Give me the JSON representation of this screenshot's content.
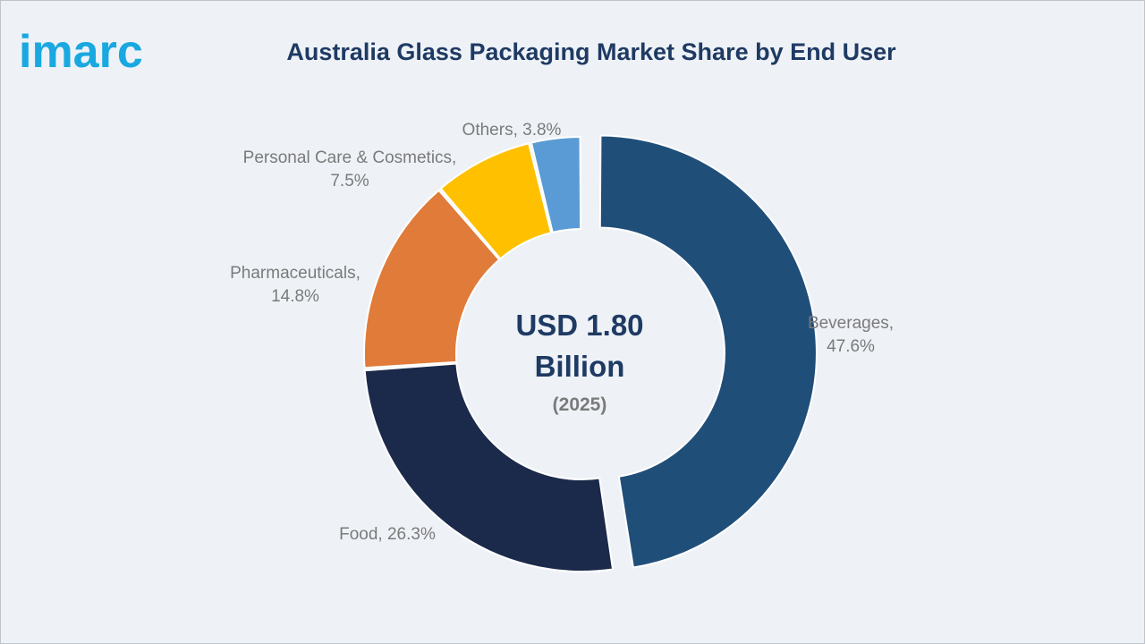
{
  "logo": {
    "text": "imarc",
    "color": "#1aa8e0"
  },
  "chart_data": {
    "type": "pie",
    "variant": "donut",
    "title": "Australia Glass Packaging Market Share by End User",
    "center": {
      "value": "USD 1.80",
      "unit": "Billion",
      "year": "(2025)"
    },
    "series": [
      {
        "name": "Beverages",
        "value": 47.6,
        "color": "#1f4e79",
        "label_lines": [
          "Beverages,",
          "47.6%"
        ],
        "exploded": true
      },
      {
        "name": "Food",
        "value": 26.3,
        "color": "#1b2a4a",
        "label_lines": [
          "Food, 26.3%"
        ]
      },
      {
        "name": "Pharmaceuticals",
        "value": 14.8,
        "color": "#e07b39",
        "label_lines": [
          "Pharmaceuticals,",
          "14.8%"
        ]
      },
      {
        "name": "Personal Care & Cosmetics",
        "value": 7.5,
        "color": "#ffc000",
        "label_lines": [
          "Personal Care & Cosmetics,",
          "7.5%"
        ]
      },
      {
        "name": "Others",
        "value": 3.8,
        "color": "#5b9bd5",
        "label_lines": [
          "Others, 3.8%"
        ]
      }
    ],
    "label_color": "#7a7a7a",
    "center_color": "#1f3a63",
    "center_sub_color": "#7a7a7a"
  }
}
